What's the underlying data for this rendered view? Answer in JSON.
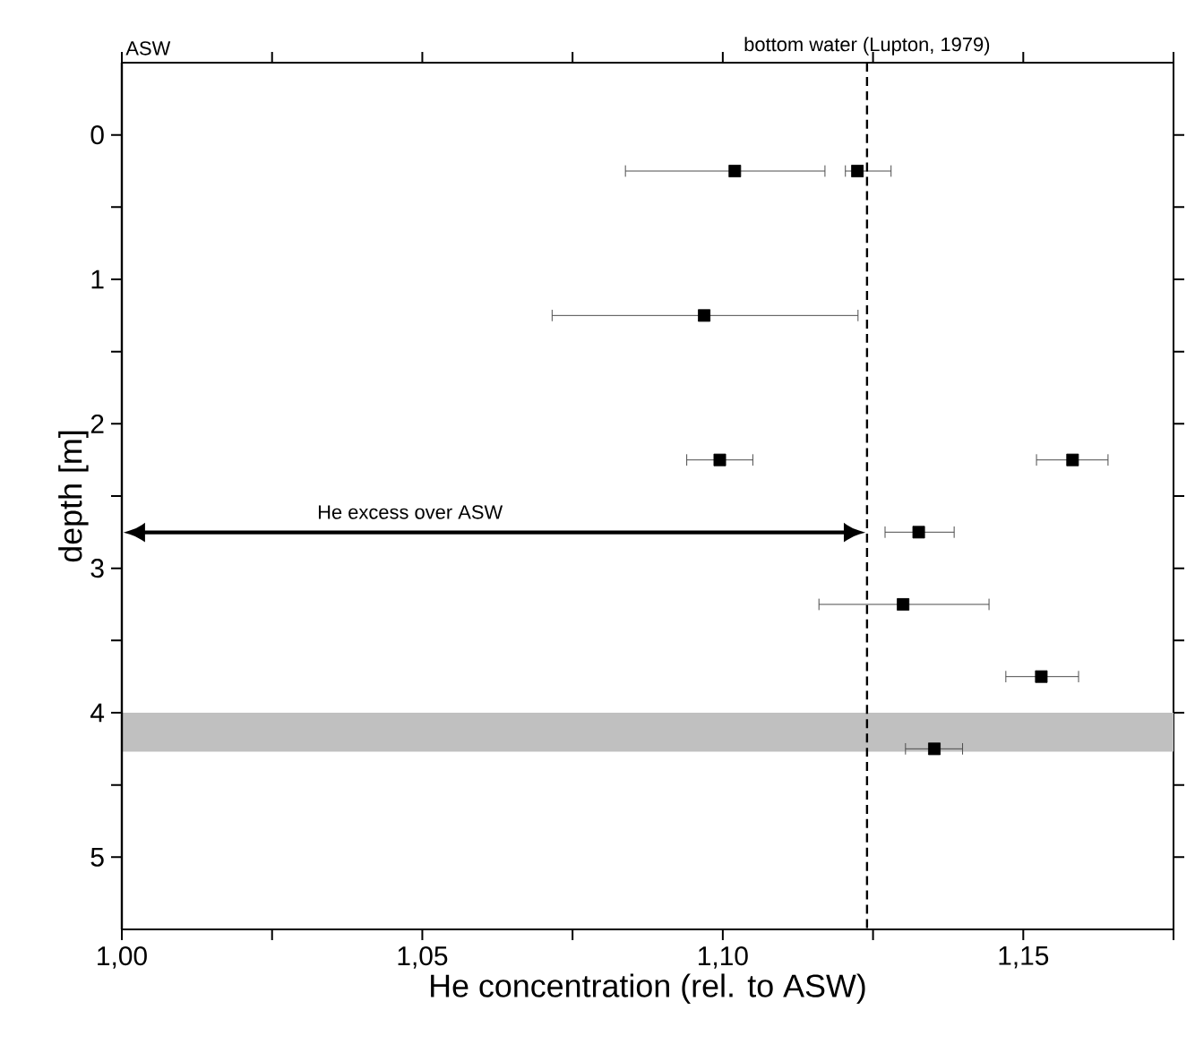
{
  "chart_data": {
    "type": "scatter",
    "xlabel": "He concentration (rel. to ASW)",
    "ylabel": "depth [m]",
    "xlim": [
      1.0,
      1.175
    ],
    "ylim": [
      5.5,
      -0.5
    ],
    "xticks": [
      {
        "value": 1.0,
        "label": "1,00"
      },
      {
        "value": 1.025,
        "label": null
      },
      {
        "value": 1.05,
        "label": "1,05"
      },
      {
        "value": 1.075,
        "label": null
      },
      {
        "value": 1.1,
        "label": "1,10"
      },
      {
        "value": 1.125,
        "label": null
      },
      {
        "value": 1.15,
        "label": "1,15"
      },
      {
        "value": 1.175,
        "label": null
      }
    ],
    "yticks": [
      0,
      {
        "value": 0.5,
        "label": null
      },
      1,
      {
        "value": 1.5,
        "label": null
      },
      2,
      {
        "value": 2.5,
        "label": null
      },
      3,
      {
        "value": 3.5,
        "label": null
      },
      4,
      {
        "value": 4.5,
        "label": null
      },
      5
    ],
    "marker": "square",
    "series": [
      {
        "color": "#000000",
        "x": [
          1.102,
          1.1224,
          1.0969,
          1.0995,
          1.1582,
          1.1326,
          1.13,
          1.153,
          1.1352
        ],
        "values": [
          0.25,
          0.25,
          1.25,
          2.25,
          2.25,
          2.75,
          3.25,
          3.75,
          4.25
        ],
        "xerrors": [
          [
            1.0838,
            1.117
          ],
          [
            1.1204,
            1.128
          ],
          [
            1.0716,
            1.1225
          ],
          [
            1.094,
            1.105
          ],
          [
            1.1522,
            1.1641
          ],
          [
            1.127,
            1.1385
          ],
          [
            1.116,
            1.1443
          ],
          [
            1.1471,
            1.1592
          ],
          [
            1.1304,
            1.1399
          ]
        ]
      }
    ],
    "ref_lines": [
      {
        "axis": "x",
        "value": 1.0,
        "label": "ASW",
        "line_style": "solid"
      },
      {
        "axis": "x",
        "value": 1.124,
        "label": "bottom water (Lupton, 1979)",
        "line_style": "dashed"
      }
    ],
    "bands": [
      {
        "axis": "y",
        "from": 4.0,
        "to": 4.27,
        "color": "#c0c0c0"
      }
    ],
    "annotations": [
      "He excess over ASW"
    ]
  }
}
